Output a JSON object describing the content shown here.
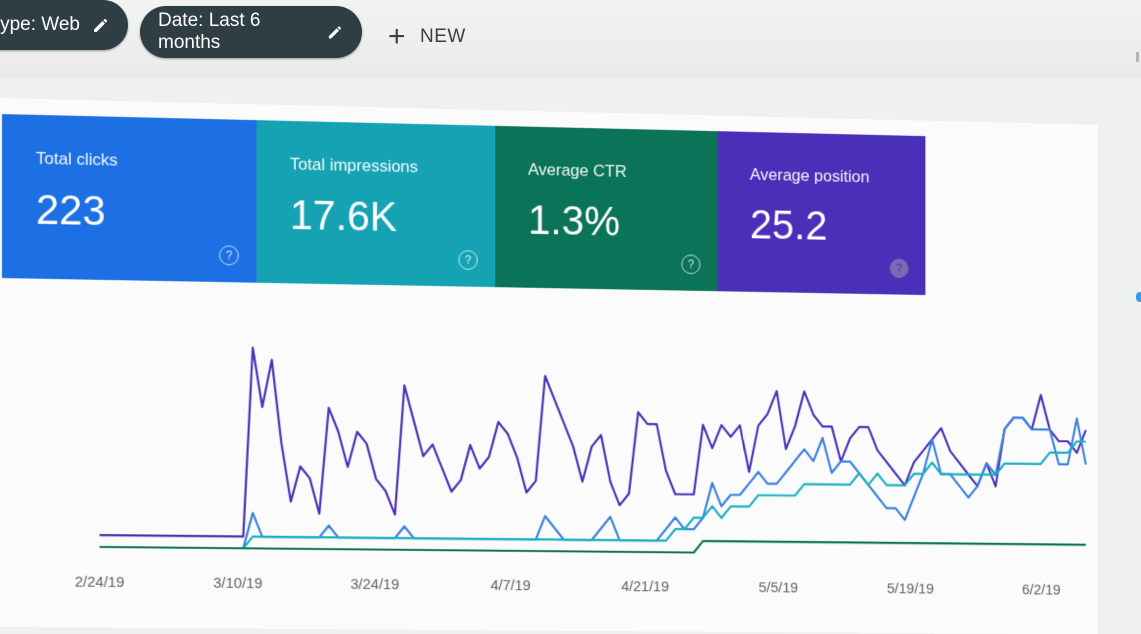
{
  "filters": {
    "type_label": "type: Web",
    "date_label": "Date: Last 6 months",
    "new_label": "NEW"
  },
  "metrics": [
    {
      "label": "Total clicks",
      "value": "223",
      "color": "#1d6fe4"
    },
    {
      "label": "Total impressions",
      "value": "17.6K",
      "color": "#15a3b4"
    },
    {
      "label": "Average CTR",
      "value": "1.3%",
      "color": "#0b7357"
    },
    {
      "label": "Average position",
      "value": "25.2",
      "color": "#4a2fb8"
    }
  ],
  "icons": {
    "edit": "pencil-icon",
    "add": "plus-icon",
    "help": "help-circle-icon"
  },
  "chart_data": {
    "type": "line",
    "x_ticks": [
      "2/24/19",
      "3/10/19",
      "3/24/19",
      "4/7/19",
      "4/21/19",
      "5/5/19",
      "5/19/19",
      "6/2/19"
    ],
    "x_range": [
      0,
      106
    ],
    "ylim": [
      0,
      100
    ],
    "grid": false,
    "series": [
      {
        "color": "#4a2fb8",
        "values": [
          5,
          5,
          5,
          5,
          5,
          5,
          5,
          5,
          5,
          5,
          5,
          5,
          5,
          5,
          5,
          5,
          85,
          60,
          80,
          45,
          20,
          35,
          30,
          15,
          60,
          50,
          35,
          50,
          45,
          30,
          25,
          15,
          70,
          55,
          40,
          45,
          35,
          25,
          30,
          45,
          35,
          40,
          55,
          50,
          40,
          25,
          30,
          75,
          65,
          55,
          45,
          30,
          45,
          50,
          30,
          20,
          25,
          60,
          55,
          55,
          35,
          25,
          25,
          25,
          55,
          45,
          55,
          50,
          55,
          35,
          55,
          60,
          70,
          45,
          55,
          70,
          60,
          55,
          55,
          40,
          50,
          55,
          55,
          45,
          40,
          35,
          30,
          40,
          45,
          50,
          55,
          45,
          40,
          35,
          30,
          40,
          30,
          55,
          60,
          60,
          55,
          70,
          55,
          50,
          50,
          45,
          55
        ]
      },
      {
        "color": "#3a7fe0",
        "values": [
          0,
          0,
          0,
          0,
          0,
          0,
          0,
          0,
          0,
          0,
          0,
          0,
          0,
          0,
          0,
          0,
          15,
          5,
          5,
          5,
          5,
          5,
          5,
          5,
          10,
          5,
          5,
          5,
          5,
          5,
          5,
          5,
          10,
          5,
          5,
          5,
          5,
          5,
          5,
          5,
          5,
          5,
          5,
          5,
          5,
          5,
          5,
          15,
          10,
          5,
          5,
          5,
          5,
          10,
          15,
          5,
          5,
          5,
          5,
          5,
          10,
          15,
          10,
          10,
          15,
          30,
          20,
          25,
          25,
          30,
          35,
          30,
          30,
          35,
          40,
          45,
          40,
          50,
          35,
          40,
          40,
          35,
          30,
          25,
          20,
          20,
          15,
          25,
          35,
          50,
          35,
          35,
          30,
          25,
          30,
          40,
          35,
          55,
          60,
          60,
          55,
          55,
          55,
          40,
          40,
          60,
          40
        ]
      },
      {
        "color": "#18b0c0",
        "values": [
          0,
          0,
          0,
          0,
          0,
          0,
          0,
          0,
          0,
          0,
          0,
          0,
          0,
          0,
          0,
          0,
          5,
          5,
          5,
          5,
          5,
          5,
          5,
          5,
          5,
          5,
          5,
          5,
          5,
          5,
          5,
          5,
          5,
          5,
          5,
          5,
          5,
          5,
          5,
          5,
          5,
          5,
          5,
          5,
          5,
          5,
          5,
          5,
          5,
          5,
          5,
          5,
          5,
          5,
          5,
          5,
          5,
          5,
          5,
          5,
          5,
          10,
          10,
          15,
          15,
          20,
          15,
          20,
          20,
          20,
          25,
          25,
          25,
          25,
          25,
          30,
          30,
          30,
          30,
          30,
          30,
          35,
          30,
          35,
          30,
          30,
          30,
          35,
          35,
          40,
          35,
          35,
          35,
          35,
          35,
          35,
          35,
          40,
          40,
          40,
          40,
          40,
          45,
          45,
          45,
          50,
          50
        ]
      },
      {
        "color": "#0b7357",
        "values": [
          0,
          0,
          0,
          0,
          0,
          0,
          0,
          0,
          0,
          0,
          0,
          0,
          0,
          0,
          0,
          0,
          0,
          0,
          0,
          0,
          0,
          0,
          0,
          0,
          0,
          0,
          0,
          0,
          0,
          0,
          0,
          0,
          0,
          0,
          0,
          0,
          0,
          0,
          0,
          0,
          0,
          0,
          0,
          0,
          0,
          0,
          0,
          0,
          0,
          0,
          0,
          0,
          0,
          0,
          0,
          0,
          0,
          0,
          0,
          0,
          0,
          0,
          0,
          0,
          5,
          5,
          5,
          5,
          5,
          5,
          5,
          5,
          5,
          5,
          5,
          5,
          5,
          5,
          5,
          5,
          5,
          5,
          5,
          5,
          5,
          5,
          5,
          5,
          5,
          5,
          5,
          5,
          5,
          5,
          5,
          5,
          5,
          5,
          5,
          5,
          5,
          5,
          5,
          5,
          5,
          5,
          5
        ]
      }
    ]
  }
}
